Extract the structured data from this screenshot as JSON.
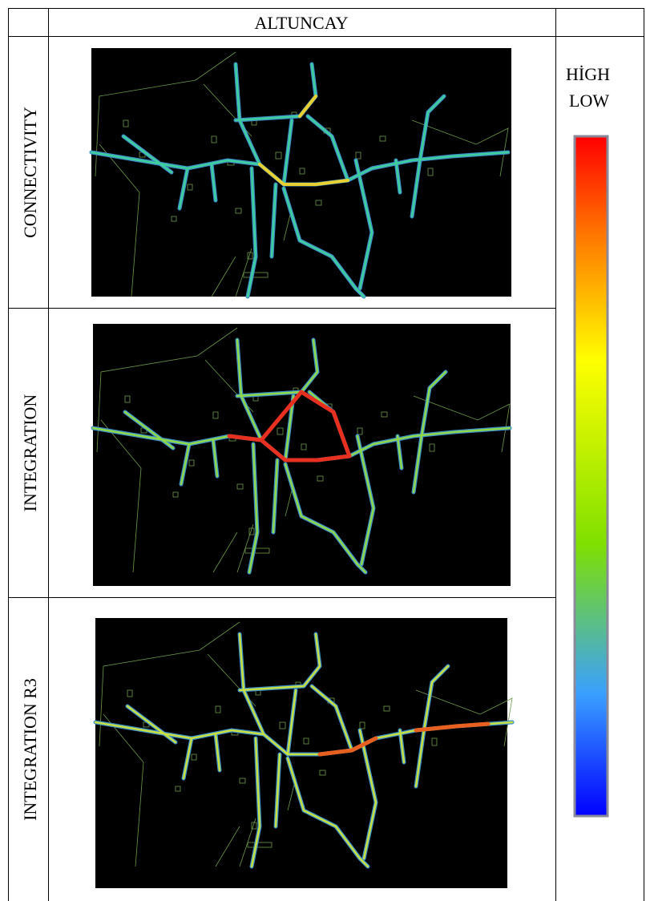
{
  "header": {
    "title": "ALTUNCAY"
  },
  "rows": [
    {
      "label": "CONNECTIVITY"
    },
    {
      "label": "INTEGRATION"
    },
    {
      "label": "INTEGRATION R3"
    }
  ],
  "legend": {
    "high": "HİGH",
    "low": "LOW"
  }
}
